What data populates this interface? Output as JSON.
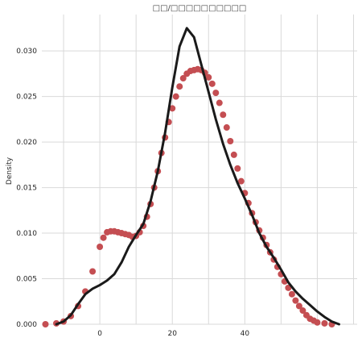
{
  "chart_data": {
    "type": "line",
    "title": "□□/□□□□□□□□□□",
    "xlabel": "",
    "ylabel": "Density",
    "xlim": [
      -16,
      71
    ],
    "ylim": [
      0,
      0.034
    ],
    "xticks": [
      0,
      20,
      40
    ],
    "yticks": [
      0.0,
      0.005,
      0.01,
      0.015,
      0.02,
      0.025,
      0.03
    ],
    "ytick_labels": [
      "0.000",
      "0.005",
      "0.010",
      "0.015",
      "0.020",
      "0.025",
      "0.030"
    ],
    "grid": true,
    "series": [
      {
        "style": "marker",
        "color": "#c44e52",
        "points": [
          [
            -15,
            0.0
          ],
          [
            -12,
            0.0001
          ],
          [
            -10,
            0.0003
          ],
          [
            -8,
            0.0009
          ],
          [
            -6,
            0.002
          ],
          [
            -4,
            0.0036
          ],
          [
            -2,
            0.0058
          ],
          [
            0,
            0.0085
          ],
          [
            1,
            0.0095
          ],
          [
            2,
            0.0101
          ],
          [
            3,
            0.0102
          ],
          [
            4,
            0.0102
          ],
          [
            5,
            0.0101
          ],
          [
            6,
            0.01
          ],
          [
            7,
            0.0099
          ],
          [
            8,
            0.0098
          ],
          [
            9,
            0.0096
          ],
          [
            10,
            0.0097
          ],
          [
            11,
            0.0101
          ],
          [
            12,
            0.0108
          ],
          [
            13,
            0.0118
          ],
          [
            14,
            0.0132
          ],
          [
            15,
            0.015
          ],
          [
            16,
            0.0168
          ],
          [
            17,
            0.0188
          ],
          [
            18,
            0.0205
          ],
          [
            19,
            0.0222
          ],
          [
            20,
            0.0237
          ],
          [
            21,
            0.025
          ],
          [
            22,
            0.0261
          ],
          [
            23,
            0.027
          ],
          [
            24,
            0.0275
          ],
          [
            25,
            0.0278
          ],
          [
            26,
            0.0279
          ],
          [
            27,
            0.028
          ],
          [
            28,
            0.0279
          ],
          [
            29,
            0.0276
          ],
          [
            30,
            0.0271
          ],
          [
            31,
            0.0264
          ],
          [
            32,
            0.0254
          ],
          [
            33,
            0.0243
          ],
          [
            34,
            0.023
          ],
          [
            35,
            0.0216
          ],
          [
            36,
            0.0201
          ],
          [
            37,
            0.0186
          ],
          [
            38,
            0.0171
          ],
          [
            39,
            0.0157
          ],
          [
            40,
            0.0144
          ],
          [
            41,
            0.0133
          ],
          [
            42,
            0.0122
          ],
          [
            43,
            0.0112
          ],
          [
            44,
            0.0103
          ],
          [
            45,
            0.0095
          ],
          [
            46,
            0.0087
          ],
          [
            47,
            0.0079
          ],
          [
            48,
            0.0071
          ],
          [
            49,
            0.0063
          ],
          [
            50,
            0.0055
          ],
          [
            51,
            0.0047
          ],
          [
            52,
            0.004
          ],
          [
            53,
            0.0033
          ],
          [
            54,
            0.0026
          ],
          [
            55,
            0.002
          ],
          [
            56,
            0.0015
          ],
          [
            57,
            0.001
          ],
          [
            58,
            0.0006
          ],
          [
            59,
            0.0004
          ],
          [
            60,
            0.0002
          ],
          [
            62,
            0.0001
          ],
          [
            64,
            0.0
          ]
        ]
      },
      {
        "style": "line",
        "color": "#1a1a1a",
        "points": [
          [
            -12,
            0.0
          ],
          [
            -10,
            0.0003
          ],
          [
            -8,
            0.001
          ],
          [
            -6,
            0.0022
          ],
          [
            -4,
            0.0033
          ],
          [
            -2,
            0.0039
          ],
          [
            0,
            0.0043
          ],
          [
            2,
            0.0048
          ],
          [
            4,
            0.0055
          ],
          [
            6,
            0.0068
          ],
          [
            8,
            0.0085
          ],
          [
            10,
            0.0098
          ],
          [
            12,
            0.011
          ],
          [
            14,
            0.0135
          ],
          [
            16,
            0.0168
          ],
          [
            18,
            0.021
          ],
          [
            20,
            0.026
          ],
          [
            22,
            0.0305
          ],
          [
            24,
            0.0325
          ],
          [
            26,
            0.0315
          ],
          [
            28,
            0.0285
          ],
          [
            30,
            0.0255
          ],
          [
            32,
            0.0225
          ],
          [
            34,
            0.0198
          ],
          [
            36,
            0.0175
          ],
          [
            38,
            0.0155
          ],
          [
            40,
            0.0138
          ],
          [
            42,
            0.012
          ],
          [
            44,
            0.01
          ],
          [
            46,
            0.0085
          ],
          [
            48,
            0.0073
          ],
          [
            50,
            0.006
          ],
          [
            52,
            0.0046
          ],
          [
            54,
            0.0036
          ],
          [
            56,
            0.0028
          ],
          [
            58,
            0.0021
          ],
          [
            60,
            0.0014
          ],
          [
            62,
            0.0008
          ],
          [
            64,
            0.0003
          ],
          [
            66,
            0.0
          ]
        ]
      }
    ]
  }
}
